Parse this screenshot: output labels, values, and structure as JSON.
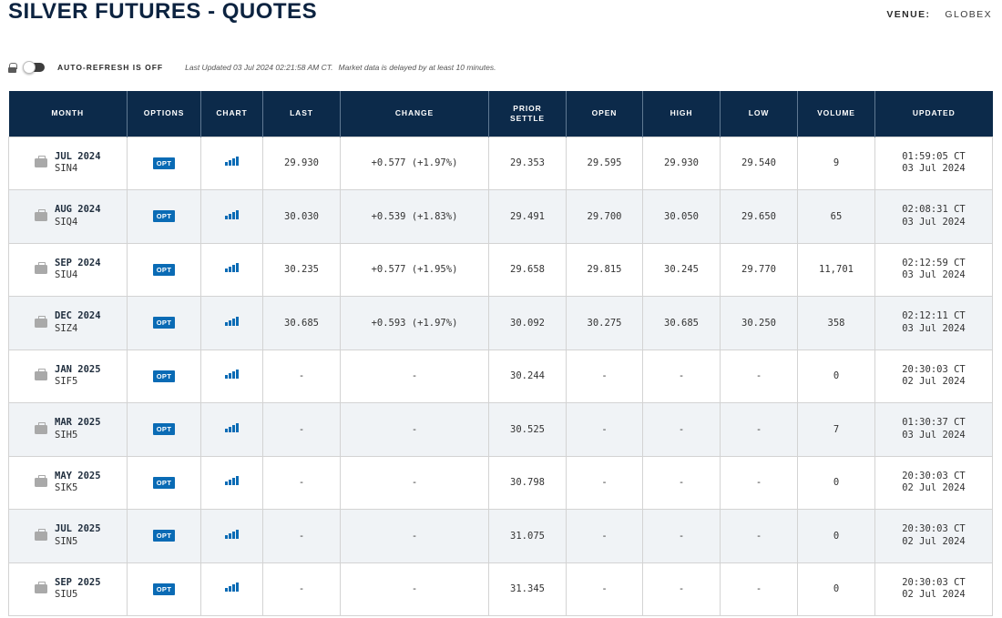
{
  "header": {
    "title": "SILVER FUTURES - QUOTES",
    "venue_label": "VENUE:",
    "venue_value": "GLOBEX"
  },
  "refresh": {
    "label": "AUTO-REFRESH IS OFF",
    "last_updated": "Last Updated 03 Jul 2024 02:21:58 AM CT.",
    "delay_note": "Market data is delayed by at least 10 minutes."
  },
  "columns": {
    "month": "MONTH",
    "options": "OPTIONS",
    "chart": "CHART",
    "last": "LAST",
    "change": "CHANGE",
    "prior_settle_1": "PRIOR",
    "prior_settle_2": "SETTLE",
    "open": "OPEN",
    "high": "HIGH",
    "low": "LOW",
    "volume": "VOLUME",
    "updated": "UPDATED"
  },
  "opt_label": "OPT",
  "colors": {
    "header_bg": "#0c2a4a",
    "accent_blue": "#0a6bb5",
    "positive_green": "#1e7e1e",
    "row_alt": "#f0f3f6"
  },
  "icons": {
    "lock": "lock-icon",
    "toggle": "toggle-switch",
    "briefcase": "briefcase-icon",
    "chart": "bar-chart-icon"
  },
  "rows": [
    {
      "month": "JUL 2024",
      "code": "SIN4",
      "last": "29.930",
      "change": "+0.577 (+1.97%)",
      "prior_settle": "29.353",
      "open": "29.595",
      "high": "29.930",
      "low": "29.540",
      "volume": "9",
      "updated_time": "01:59:05 CT",
      "updated_date": "03 Jul 2024"
    },
    {
      "month": "AUG 2024",
      "code": "SIQ4",
      "last": "30.030",
      "change": "+0.539 (+1.83%)",
      "prior_settle": "29.491",
      "open": "29.700",
      "high": "30.050",
      "low": "29.650",
      "volume": "65",
      "updated_time": "02:08:31 CT",
      "updated_date": "03 Jul 2024"
    },
    {
      "month": "SEP 2024",
      "code": "SIU4",
      "last": "30.235",
      "change": "+0.577 (+1.95%)",
      "prior_settle": "29.658",
      "open": "29.815",
      "high": "30.245",
      "low": "29.770",
      "volume": "11,701",
      "updated_time": "02:12:59 CT",
      "updated_date": "03 Jul 2024"
    },
    {
      "month": "DEC 2024",
      "code": "SIZ4",
      "last": "30.685",
      "change": "+0.593 (+1.97%)",
      "prior_settle": "30.092",
      "open": "30.275",
      "high": "30.685",
      "low": "30.250",
      "volume": "358",
      "updated_time": "02:12:11 CT",
      "updated_date": "03 Jul 2024"
    },
    {
      "month": "JAN 2025",
      "code": "SIF5",
      "last": "-",
      "change": "-",
      "prior_settle": "30.244",
      "open": "-",
      "high": "-",
      "low": "-",
      "volume": "0",
      "updated_time": "20:30:03 CT",
      "updated_date": "02 Jul 2024"
    },
    {
      "month": "MAR 2025",
      "code": "SIH5",
      "last": "-",
      "change": "-",
      "prior_settle": "30.525",
      "open": "-",
      "high": "-",
      "low": "-",
      "volume": "7",
      "updated_time": "01:30:37 CT",
      "updated_date": "03 Jul 2024"
    },
    {
      "month": "MAY 2025",
      "code": "SIK5",
      "last": "-",
      "change": "-",
      "prior_settle": "30.798",
      "open": "-",
      "high": "-",
      "low": "-",
      "volume": "0",
      "updated_time": "20:30:03 CT",
      "updated_date": "02 Jul 2024"
    },
    {
      "month": "JUL 2025",
      "code": "SIN5",
      "last": "-",
      "change": "-",
      "prior_settle": "31.075",
      "open": "-",
      "high": "-",
      "low": "-",
      "volume": "0",
      "updated_time": "20:30:03 CT",
      "updated_date": "02 Jul 2024"
    },
    {
      "month": "SEP 2025",
      "code": "SIU5",
      "last": "-",
      "change": "-",
      "prior_settle": "31.345",
      "open": "-",
      "high": "-",
      "low": "-",
      "volume": "0",
      "updated_time": "20:30:03 CT",
      "updated_date": "02 Jul 2024"
    }
  ]
}
